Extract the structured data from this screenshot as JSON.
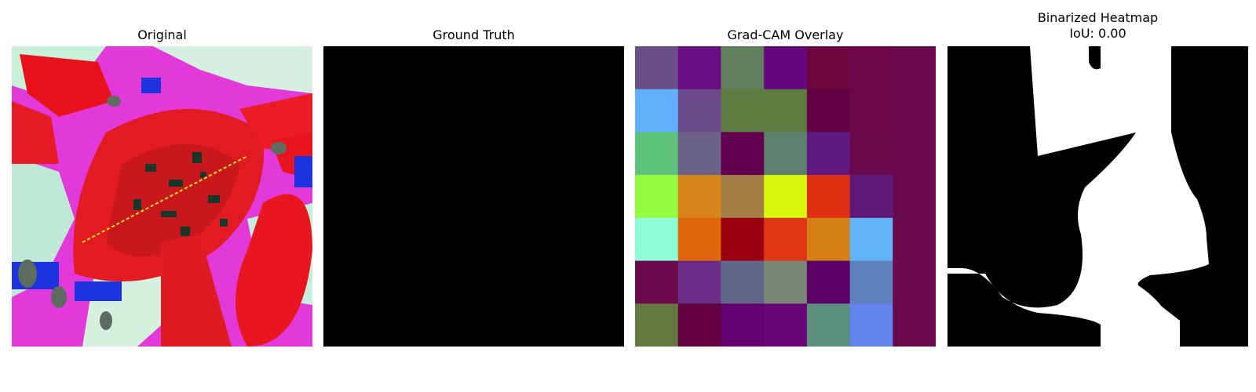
{
  "panels": {
    "original": {
      "title": "Original"
    },
    "ground_truth": {
      "title": "Ground Truth"
    },
    "gradcam": {
      "title": "Grad-CAM Overlay"
    },
    "binarized": {
      "title": "Binarized Heatmap",
      "subtitle": "IoU: 0.00"
    }
  },
  "gradcam_grid": [
    [
      "#6a4f86",
      "#6a0e84",
      "#5f7e5b",
      "#64067c",
      "#6d053f",
      "#6b0747",
      "#6a0a4c"
    ],
    [
      "#61aefa",
      "#6a4a89",
      "#5e7b42",
      "#5f7c40",
      "#620044",
      "#6d0849",
      "#6a0a4c"
    ],
    [
      "#5fc27a",
      "#6b6387",
      "#62004e",
      "#5e7e70",
      "#5e1a80",
      "#6b0a4a",
      "#6a0a4c"
    ],
    [
      "#94fb42",
      "#d5851c",
      "#a37e47",
      "#d8f80c",
      "#df3114",
      "#5e1877",
      "#6a0a4c"
    ],
    [
      "#8efcd6",
      "#e0680c",
      "#9a0010",
      "#e03617",
      "#d68118",
      "#63b4f7",
      "#6a0a4c"
    ],
    [
      "#6a0a4c",
      "#6b2e86",
      "#5f6688",
      "#7a8678",
      "#5c0068",
      "#5f82be",
      "#6a0a4c"
    ],
    [
      "#64783f",
      "#640041",
      "#62006f",
      "#680476",
      "#5c8f7c",
      "#6383ec",
      "#6a0a4c"
    ]
  ]
}
